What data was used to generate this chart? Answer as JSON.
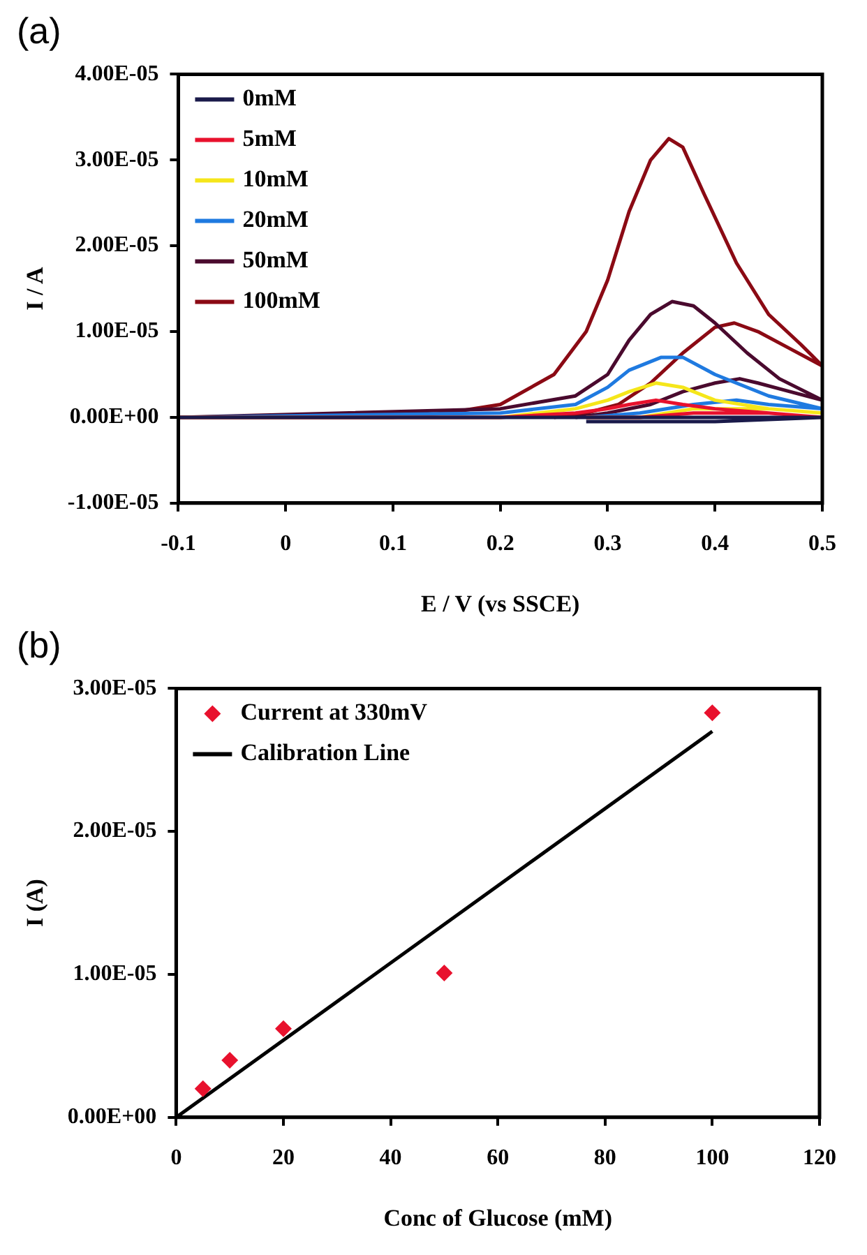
{
  "chart_data": [
    {
      "type": "line",
      "title": "(a)",
      "xlabel": "E / V (vs SSCE)",
      "ylabel": "I / A",
      "xlim": [
        -0.1,
        0.5
      ],
      "xticks": [
        -0.1,
        0,
        0.1,
        0.2,
        0.3,
        0.4,
        0.5
      ],
      "ylim": [
        -1e-05,
        4e-05
      ],
      "yticks": [
        {
          "value": -1e-05,
          "label": "-1.00E-05"
        },
        {
          "value": 0,
          "label": "0.00E+00"
        },
        {
          "value": 1e-05,
          "label": "1.00E-05"
        },
        {
          "value": 2e-05,
          "label": "2.00E-05"
        },
        {
          "value": 3e-05,
          "label": "3.00E-05"
        },
        {
          "value": 4e-05,
          "label": "4.00E-05"
        }
      ],
      "grid": false,
      "legend": "top left",
      "series": [
        {
          "name": "0mM",
          "color": "#1a1a4a",
          "x": [
            -0.1,
            0.2,
            0.3,
            0.4,
            0.5,
            0.4,
            0.3,
            0.28
          ],
          "values": [
            0,
            0,
            0,
            0,
            0,
            -5e-07,
            -5e-07,
            -5e-07
          ]
        },
        {
          "name": "5mM",
          "color": "#e8112d",
          "x": [
            -0.1,
            0.2,
            0.27,
            0.3,
            0.32,
            0.345,
            0.37,
            0.4,
            0.45,
            0.5,
            0.45,
            0.42,
            0.38,
            0.33,
            0.28
          ],
          "values": [
            0,
            0,
            5e-07,
            1e-06,
            1.5e-06,
            2e-06,
            1.5e-06,
            1e-06,
            5e-07,
            0,
            5e-07,
            5e-07,
            5e-07,
            0,
            0
          ]
        },
        {
          "name": "10mM",
          "color": "#f5e61a",
          "x": [
            -0.1,
            0.2,
            0.27,
            0.3,
            0.32,
            0.345,
            0.37,
            0.4,
            0.45,
            0.5,
            0.45,
            0.42,
            0.38,
            0.33,
            0.28
          ],
          "values": [
            0,
            0,
            1e-06,
            2e-06,
            3e-06,
            4e-06,
            3.5e-06,
            2e-06,
            1e-06,
            5e-07,
            1e-06,
            1e-06,
            1e-06,
            0,
            0
          ]
        },
        {
          "name": "20mM",
          "color": "#1f7ae0",
          "x": [
            -0.1,
            0.2,
            0.27,
            0.3,
            0.32,
            0.35,
            0.37,
            0.4,
            0.45,
            0.5,
            0.45,
            0.42,
            0.38,
            0.33,
            0.28
          ],
          "values": [
            0,
            5e-07,
            1.5e-06,
            3.5e-06,
            5.5e-06,
            7e-06,
            7e-06,
            5e-06,
            2.5e-06,
            1e-06,
            1.5e-06,
            2e-06,
            1.5e-06,
            5e-07,
            0
          ]
        },
        {
          "name": "50mM",
          "color": "#4a0a2e",
          "x": [
            -0.1,
            0.2,
            0.27,
            0.3,
            0.32,
            0.34,
            0.36,
            0.38,
            0.4,
            0.43,
            0.46,
            0.5,
            0.47,
            0.44,
            0.423,
            0.4,
            0.37,
            0.34,
            0.3,
            0.27
          ],
          "values": [
            0,
            1e-06,
            2.5e-06,
            5e-06,
            9e-06,
            1.2e-05,
            1.35e-05,
            1.3e-05,
            1.1e-05,
            7.5e-06,
            4.5e-06,
            2e-06,
            3e-06,
            4e-06,
            4.5e-06,
            4e-06,
            3e-06,
            1.5e-06,
            5e-07,
            0
          ]
        },
        {
          "name": "100mM",
          "color": "#8b0a14",
          "x": [
            -0.1,
            0.1,
            0.15,
            0.2,
            0.25,
            0.28,
            0.3,
            0.32,
            0.34,
            0.357,
            0.37,
            0.39,
            0.42,
            0.45,
            0.48,
            0.5,
            0.47,
            0.44,
            0.418,
            0.4,
            0.37,
            0.34,
            0.31,
            0.28,
            0.25
          ],
          "values": [
            0,
            0,
            5e-07,
            1.5e-06,
            5e-06,
            1e-05,
            1.6e-05,
            2.4e-05,
            3e-05,
            3.25e-05,
            3.15e-05,
            2.6e-05,
            1.8e-05,
            1.2e-05,
            8.5e-06,
            6e-06,
            8e-06,
            1e-05,
            1.1e-05,
            1.05e-05,
            7.5e-06,
            4e-06,
            1.5e-06,
            5e-07,
            0
          ]
        }
      ]
    },
    {
      "type": "scatter",
      "title": "(b)",
      "xlabel": "Conc of Glucose (mM)",
      "ylabel": "I (A)",
      "xlim": [
        0,
        120
      ],
      "xticks": [
        0,
        20,
        40,
        60,
        80,
        100,
        120
      ],
      "ylim": [
        0,
        3e-05
      ],
      "yticks": [
        {
          "value": 0,
          "label": "0.00E+00"
        },
        {
          "value": 1e-05,
          "label": "1.00E-05"
        },
        {
          "value": 2e-05,
          "label": "2.00E-05"
        },
        {
          "value": 3e-05,
          "label": "3.00E-05"
        }
      ],
      "grid": false,
      "legend": "top left",
      "series": [
        {
          "name": "Current at 330mV",
          "color": "#e8112d",
          "marker": "diamond",
          "x": [
            5,
            10,
            20,
            50,
            100
          ],
          "values": [
            2e-06,
            4e-06,
            6.2e-06,
            1.01e-05,
            2.83e-05
          ]
        },
        {
          "name": "Calibration Line",
          "type": "line",
          "color": "#000000",
          "x": [
            0,
            100
          ],
          "values": [
            0,
            2.7e-05
          ]
        }
      ]
    }
  ]
}
